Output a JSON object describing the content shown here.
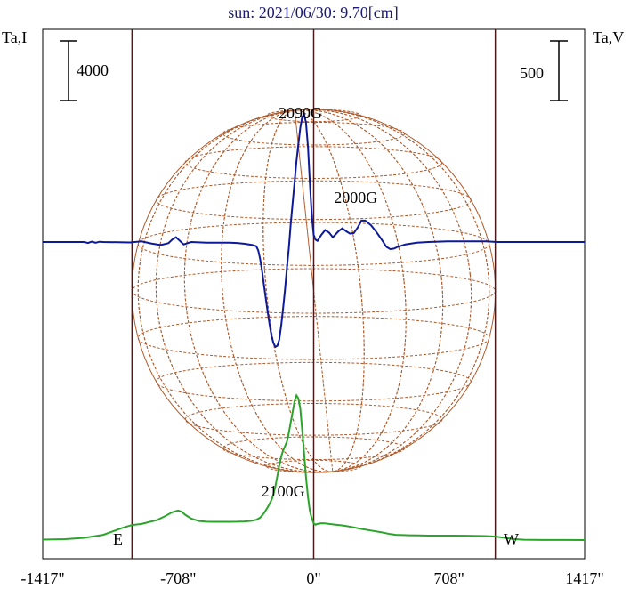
{
  "title": "sun: 2021/06/30: 9.70[cm]",
  "left_axis_label": "Ta,I",
  "right_axis_label": "Ta,V",
  "left_scale_label": "4000",
  "right_scale_label": "500",
  "east_label": "E",
  "west_label": "W",
  "colors": {
    "title": "#1a1a7a",
    "frame": "#000000",
    "limb_lines": "#4a1a1a",
    "disk": "#b05a2a",
    "stokes_i": "#2aa52a",
    "stokes_v": "#0c1a9a"
  },
  "chart_data": {
    "type": "line",
    "title": "sun: 2021/06/30: 9.70[cm]",
    "xlabel": "",
    "ylabel_left": "Ta,I",
    "ylabel_right": "Ta,V",
    "x_ticks": [
      -1417,
      -708,
      0,
      708,
      1417
    ],
    "x_tick_labels": [
      "-1417\"",
      "-708\"",
      "0\"",
      "708\"",
      "1417\""
    ],
    "xlim": [
      -1417,
      1417
    ],
    "scale_bars": {
      "I": 4000,
      "V": 500
    },
    "solar_limb": [
      -950,
      950
    ],
    "annotations": [
      {
        "text": "2090G",
        "x": -70
      },
      {
        "text": "2000G",
        "x": 220
      },
      {
        "text": "2100G",
        "x": -160
      }
    ],
    "series": [
      {
        "name": "I",
        "axis": "left",
        "x": [
          -1417,
          -1300,
          -1200,
          -1100,
          -1000,
          -950,
          -900,
          -820,
          -780,
          -740,
          -720,
          -708,
          -690,
          -670,
          -640,
          -600,
          -560,
          -520,
          -480,
          -440,
          -400,
          -360,
          -320,
          -300,
          -280,
          -260,
          -240,
          -220,
          -210,
          -200,
          -190,
          -180,
          -170,
          -160,
          -150,
          -140,
          -130,
          -120,
          -110,
          -100,
          -90,
          -80,
          -70,
          -60,
          -50,
          -40,
          -30,
          -20,
          -10,
          0,
          10,
          20,
          40,
          60,
          80,
          100,
          130,
          160,
          200,
          240,
          300,
          360,
          400,
          430,
          470,
          500,
          550,
          600,
          700,
          800,
          900,
          950,
          1000,
          1050,
          1100,
          1150,
          1200,
          1300,
          1417
        ],
        "values": [
          30,
          60,
          150,
          350,
          820,
          1010,
          1080,
          1340,
          1580,
          1860,
          1940,
          1975,
          1900,
          1680,
          1430,
          1280,
          1230,
          1225,
          1225,
          1225,
          1230,
          1250,
          1300,
          1360,
          1500,
          1800,
          2200,
          2700,
          3100,
          3600,
          4300,
          5000,
          5600,
          6000,
          6300,
          6600,
          7200,
          7900,
          8600,
          9300,
          9700,
          9500,
          8800,
          7400,
          5800,
          4200,
          2900,
          1950,
          1450,
          1120,
          1030,
          1080,
          1130,
          1120,
          1080,
          1050,
          1010,
          960,
          880,
          770,
          640,
          510,
          400,
          355,
          335,
          320,
          308,
          300,
          300,
          290,
          270,
          240,
          150,
          60,
          25,
          15,
          8,
          4,
          0
        ]
      },
      {
        "name": "V",
        "axis": "right",
        "x": [
          -1417,
          -1200,
          -1180,
          -1160,
          -1140,
          -1120,
          -1100,
          -960,
          -900,
          -850,
          -800,
          -760,
          -740,
          -720,
          -700,
          -680,
          -660,
          -640,
          -560,
          -480,
          -440,
          -400,
          -360,
          -320,
          -300,
          -290,
          -280,
          -270,
          -260,
          -250,
          -240,
          -230,
          -220,
          -210,
          -200,
          -190,
          -180,
          -170,
          -160,
          -150,
          -140,
          -130,
          -120,
          -110,
          -100,
          -90,
          -80,
          -70,
          -60,
          -50,
          -40,
          -30,
          -20,
          -10,
          0,
          10,
          20,
          40,
          60,
          80,
          100,
          110,
          130,
          150,
          170,
          190,
          210,
          230,
          250,
          270,
          300,
          330,
          360,
          380,
          400,
          420,
          440,
          480,
          540,
          600,
          700,
          800,
          900,
          960,
          1000,
          1100,
          1417
        ],
        "values": [
          0,
          0,
          -8,
          3,
          -6,
          2,
          0,
          -4,
          5,
          -12,
          -25,
          -10,
          20,
          40,
          10,
          -20,
          -10,
          0,
          -5,
          -5,
          -6,
          -8,
          -15,
          -25,
          -35,
          -70,
          -140,
          -240,
          -360,
          -480,
          -590,
          -700,
          -790,
          -850,
          -880,
          -870,
          -820,
          -700,
          -560,
          -400,
          -220,
          -50,
          150,
          330,
          500,
          680,
          820,
          960,
          1050,
          1070,
          1000,
          800,
          500,
          220,
          60,
          20,
          10,
          60,
          100,
          80,
          40,
          55,
          90,
          115,
          90,
          70,
          75,
          120,
          180,
          180,
          140,
          80,
          10,
          -40,
          -60,
          -55,
          -40,
          -20,
          -5,
          0,
          5,
          5,
          5,
          0,
          0,
          0,
          0
        ]
      }
    ]
  }
}
